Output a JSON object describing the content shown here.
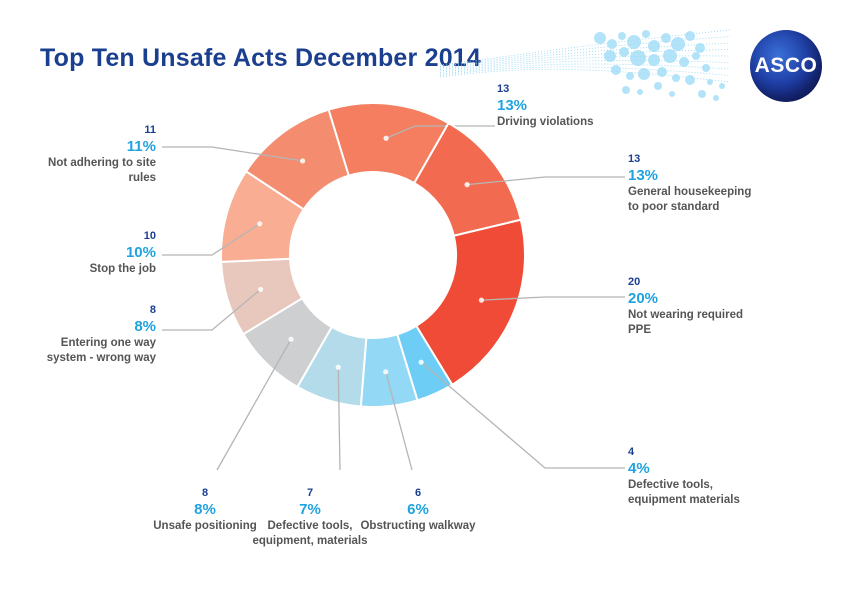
{
  "page": {
    "title": "Top Ten Unsafe Acts December 2014",
    "logo_text": "ASCO",
    "colors": {
      "title": "#1b3f8f",
      "percent": "#1fa3e0",
      "count": "#1b3f8f",
      "name": "#555555"
    }
  },
  "chart_data": {
    "type": "donut",
    "title": "Top Ten Unsafe Acts December 2014",
    "slices": [
      {
        "label": "Driving violations",
        "count": "13",
        "percent": "13%",
        "value": 13,
        "color": "#f47e5f"
      },
      {
        "label": "General housekeeping to poor standard",
        "count": "13",
        "percent": "13%",
        "value": 13,
        "color": "#f26a4f"
      },
      {
        "label": "Not wearing required PPE",
        "count": "20",
        "percent": "20%",
        "value": 20,
        "color": "#ef4b36"
      },
      {
        "label": "Defective tools, equipment materials",
        "count": "4",
        "percent": "4%",
        "value": 4,
        "color": "#6ecdf5"
      },
      {
        "label": "Obstructing walkway",
        "count": "6",
        "percent": "6%",
        "value": 6,
        "color": "#93d8f5"
      },
      {
        "label": "Defective tools, equipment, materials",
        "count": "7",
        "percent": "7%",
        "value": 7,
        "color": "#b3dbe9"
      },
      {
        "label": "Unsafe positioning",
        "count": "8",
        "percent": "8%",
        "value": 8,
        "color": "#cecfd1"
      },
      {
        "label": "Entering one way system - wrong way",
        "count": "8",
        "percent": "8%",
        "value": 8,
        "color": "#e8c7bc"
      },
      {
        "label": "Stop the job",
        "count": "10",
        "percent": "10%",
        "value": 10,
        "color": "#f9ad92"
      },
      {
        "label": "Not adhering to site rules",
        "count": "11",
        "percent": "11%",
        "value": 11,
        "color": "#f48d6f"
      }
    ],
    "leader_line_color": "#b5b5b5",
    "legend": "none"
  }
}
